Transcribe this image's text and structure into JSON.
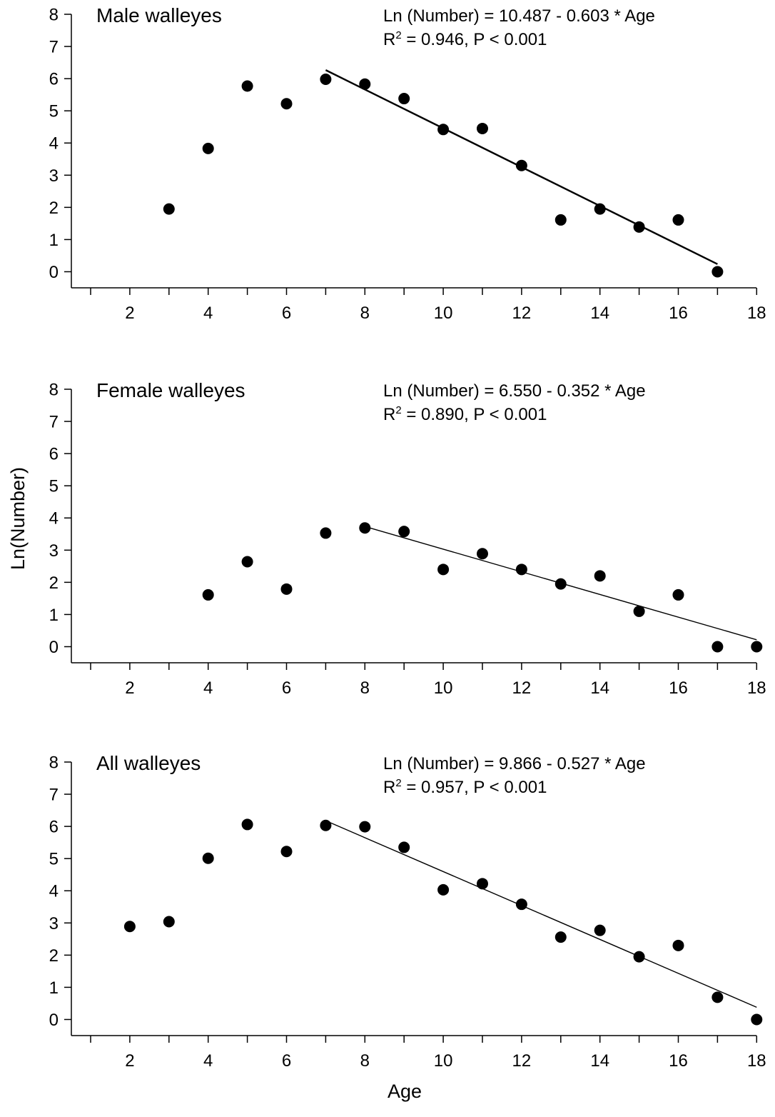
{
  "figure": {
    "ylabel": "Ln(Number)",
    "xlabel": "Age"
  },
  "colors": {
    "marker": "#000000",
    "line": "#000000",
    "background": "#ffffff"
  },
  "chart_data": [
    {
      "type": "scatter",
      "title": "Male walleyes",
      "equation": "Ln (Number) = 10.487 -  0.603 * Age",
      "stats_prefix": "R",
      "stats_exponent": "2",
      "stats_suffix": " = 0.946, P < 0.001",
      "xlim": [
        0.5,
        18
      ],
      "ylim": [
        -0.5,
        8
      ],
      "xticks": [
        2,
        4,
        6,
        8,
        10,
        12,
        14,
        16,
        18
      ],
      "yticks": [
        0,
        1,
        2,
        3,
        4,
        5,
        6,
        7,
        8
      ],
      "grid": false,
      "points": [
        {
          "x": 3,
          "y": 1.95
        },
        {
          "x": 4,
          "y": 3.83
        },
        {
          "x": 5,
          "y": 5.77
        },
        {
          "x": 6,
          "y": 5.22
        },
        {
          "x": 7,
          "y": 5.98
        },
        {
          "x": 8,
          "y": 5.83
        },
        {
          "x": 9,
          "y": 5.38
        },
        {
          "x": 10,
          "y": 4.42
        },
        {
          "x": 11,
          "y": 4.45
        },
        {
          "x": 12,
          "y": 3.3
        },
        {
          "x": 13,
          "y": 1.61
        },
        {
          "x": 14,
          "y": 1.95
        },
        {
          "x": 15,
          "y": 1.39
        },
        {
          "x": 16,
          "y": 1.61
        },
        {
          "x": 17,
          "y": 0.0
        }
      ],
      "fit": {
        "intercept": 10.487,
        "slope": -0.603,
        "x_range": [
          7,
          17
        ]
      }
    },
    {
      "type": "scatter",
      "title": "Female walleyes",
      "equation": "Ln (Number) = 6.550 -  0.352 * Age",
      "stats_prefix": "R",
      "stats_exponent": "2",
      "stats_suffix": " = 0.890, P < 0.001",
      "xlim": [
        0.5,
        18
      ],
      "ylim": [
        -0.5,
        8
      ],
      "xticks": [
        2,
        4,
        6,
        8,
        10,
        12,
        14,
        16,
        18
      ],
      "yticks": [
        0,
        1,
        2,
        3,
        4,
        5,
        6,
        7,
        8
      ],
      "grid": false,
      "points": [
        {
          "x": 4,
          "y": 1.61
        },
        {
          "x": 5,
          "y": 2.64
        },
        {
          "x": 6,
          "y": 1.79
        },
        {
          "x": 7,
          "y": 3.53
        },
        {
          "x": 8,
          "y": 3.69
        },
        {
          "x": 9,
          "y": 3.58
        },
        {
          "x": 10,
          "y": 2.4
        },
        {
          "x": 11,
          "y": 2.89
        },
        {
          "x": 12,
          "y": 2.4
        },
        {
          "x": 13,
          "y": 1.95
        },
        {
          "x": 14,
          "y": 2.2
        },
        {
          "x": 15,
          "y": 1.1
        },
        {
          "x": 16,
          "y": 1.61
        },
        {
          "x": 17,
          "y": 0.0
        },
        {
          "x": 18,
          "y": 0.0
        }
      ],
      "fit": {
        "intercept": 6.55,
        "slope": -0.352,
        "x_range": [
          8,
          18
        ]
      }
    },
    {
      "type": "scatter",
      "title": "All walleyes",
      "equation": "Ln (Number) = 9.866 -  0.527 * Age",
      "stats_prefix": "R",
      "stats_exponent": "2",
      "stats_suffix": " = 0.957, P < 0.001",
      "xlim": [
        0.5,
        18
      ],
      "ylim": [
        -0.5,
        8
      ],
      "xticks": [
        2,
        4,
        6,
        8,
        10,
        12,
        14,
        16,
        18
      ],
      "yticks": [
        0,
        1,
        2,
        3,
        4,
        5,
        6,
        7,
        8
      ],
      "grid": false,
      "points": [
        {
          "x": 2,
          "y": 2.89
        },
        {
          "x": 3,
          "y": 3.04
        },
        {
          "x": 4,
          "y": 5.01
        },
        {
          "x": 5,
          "y": 6.06
        },
        {
          "x": 6,
          "y": 5.22
        },
        {
          "x": 7,
          "y": 6.03
        },
        {
          "x": 8,
          "y": 5.99
        },
        {
          "x": 9,
          "y": 5.35
        },
        {
          "x": 10,
          "y": 4.03
        },
        {
          "x": 11,
          "y": 4.22
        },
        {
          "x": 12,
          "y": 3.58
        },
        {
          "x": 13,
          "y": 2.56
        },
        {
          "x": 14,
          "y": 2.77
        },
        {
          "x": 15,
          "y": 1.95
        },
        {
          "x": 16,
          "y": 2.3
        },
        {
          "x": 17,
          "y": 0.69
        },
        {
          "x": 18,
          "y": 0.0
        }
      ],
      "fit": {
        "intercept": 9.866,
        "slope": -0.527,
        "x_range": [
          7,
          18
        ]
      }
    }
  ]
}
